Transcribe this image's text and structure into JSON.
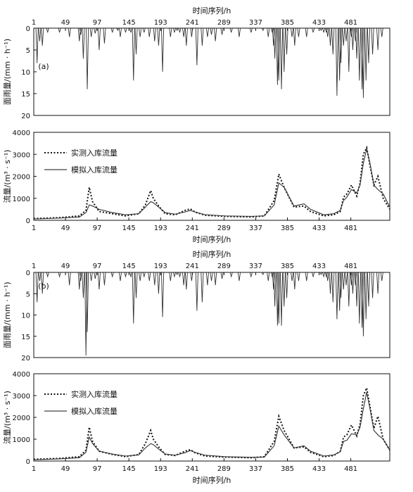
{
  "figure": {
    "colors": {
      "axis": "#111111",
      "rain": "#333333",
      "observed": "#111111",
      "simulated": "#333333"
    }
  },
  "chart_data": [
    {
      "type": "bar",
      "panel_label": "(a)",
      "xlabel": "时间序列/h",
      "ylabel": "面雨量/(mm · h⁻¹)",
      "xlim": [
        1,
        540
      ],
      "ylim": [
        0,
        20
      ],
      "y_inverted": true,
      "x_axis_position": "top",
      "xticks": [
        1,
        49,
        97,
        145,
        193,
        241,
        289,
        337,
        385,
        433,
        481
      ],
      "yticks": [
        0,
        5,
        10,
        15,
        20
      ],
      "x": [
        6,
        10,
        14,
        22,
        40,
        55,
        70,
        72,
        76,
        82,
        88,
        94,
        100,
        108,
        120,
        128,
        132,
        140,
        148,
        152,
        156,
        162,
        168,
        176,
        184,
        190,
        196,
        208,
        214,
        218,
        222,
        228,
        232,
        240,
        248,
        256,
        264,
        270,
        276,
        286,
        300,
        312,
        330,
        348,
        356,
        362,
        364,
        366,
        370,
        372,
        376,
        380,
        384,
        392,
        396,
        402,
        414,
        424,
        436,
        440,
        444,
        446,
        450,
        454,
        460,
        464,
        466,
        470,
        474,
        478,
        482,
        484,
        488,
        490,
        494,
        498,
        500,
        504,
        508,
        514,
        522,
        528
      ],
      "values": [
        8,
        3,
        4,
        1,
        1,
        2,
        3,
        1.5,
        7,
        14,
        2,
        1.2,
        5,
        3.5,
        1,
        0.5,
        2,
        1,
        1,
        12,
        6,
        2,
        1,
        2,
        3,
        4,
        10,
        2,
        1,
        0.5,
        1,
        2,
        4,
        2,
        8.5,
        4,
        2,
        1.5,
        3,
        1.5,
        1,
        2,
        1,
        0.5,
        2,
        1,
        4,
        7,
        13,
        12,
        14,
        10,
        6,
        2,
        4,
        2,
        2,
        1,
        0.5,
        1,
        1,
        2,
        4,
        6,
        15.5,
        12,
        8,
        4,
        3,
        10,
        2,
        5,
        3,
        7,
        12,
        14,
        16,
        12,
        8,
        6,
        5,
        2
      ]
    },
    {
      "type": "line",
      "xlabel": "时间序列/h",
      "ylabel": "流量/(m³ · s⁻¹)",
      "xlim": [
        1,
        540
      ],
      "ylim": [
        0,
        4000
      ],
      "xticks": [
        1,
        49,
        97,
        145,
        193,
        241,
        289,
        337,
        385,
        433,
        481
      ],
      "yticks": [
        0,
        1000,
        2000,
        3000,
        4000
      ],
      "legend_position": "upper-left",
      "series": [
        {
          "name": "实测入库流量",
          "style": "dotted",
          "x": [
            1,
            40,
            70,
            80,
            85,
            90,
            100,
            120,
            140,
            160,
            170,
            178,
            182,
            190,
            200,
            215,
            230,
            238,
            245,
            260,
            290,
            330,
            350,
            365,
            372,
            380,
            395,
            410,
            420,
            440,
            455,
            465,
            470,
            475,
            482,
            490,
            495,
            500,
            505,
            510,
            516,
            522,
            530,
            540
          ],
          "values": [
            80,
            120,
            200,
            450,
            1500,
            850,
            400,
            300,
            200,
            300,
            700,
            1350,
            1000,
            650,
            300,
            250,
            450,
            520,
            380,
            230,
            180,
            150,
            200,
            900,
            2100,
            1500,
            600,
            650,
            400,
            200,
            250,
            400,
            1050,
            1200,
            1600,
            1100,
            1700,
            3000,
            3300,
            2500,
            1600,
            2000,
            1000,
            500
          ]
        },
        {
          "name": "模拟入库流量",
          "style": "solid",
          "x": [
            1,
            40,
            70,
            80,
            85,
            90,
            100,
            120,
            140,
            160,
            170,
            178,
            182,
            190,
            200,
            215,
            230,
            238,
            245,
            260,
            290,
            330,
            350,
            365,
            372,
            380,
            395,
            410,
            420,
            440,
            455,
            465,
            470,
            475,
            482,
            490,
            495,
            500,
            505,
            510,
            516,
            522,
            530,
            540
          ],
          "values": [
            60,
            100,
            150,
            350,
            700,
            650,
            500,
            350,
            250,
            300,
            600,
            850,
            800,
            600,
            350,
            280,
            380,
            450,
            380,
            260,
            200,
            180,
            200,
            700,
            1700,
            1500,
            650,
            750,
            500,
            250,
            300,
            450,
            900,
            1050,
            1400,
            1250,
            1600,
            2600,
            3250,
            2600,
            1600,
            1400,
            1200,
            600
          ]
        }
      ]
    },
    {
      "type": "bar",
      "panel_label": "(b)",
      "xlabel": "时间序列/h",
      "ylabel": "面雨量/(mm · h⁻¹)",
      "xlim": [
        1,
        540
      ],
      "ylim": [
        0,
        20
      ],
      "y_inverted": true,
      "x_axis_position": "top",
      "xticks": [
        1,
        49,
        97,
        145,
        193,
        241,
        289,
        337,
        385,
        433,
        481
      ],
      "yticks": [
        0,
        5,
        10,
        15,
        20
      ],
      "x": [
        6,
        10,
        14,
        22,
        40,
        55,
        70,
        72,
        76,
        80,
        82,
        88,
        94,
        100,
        108,
        120,
        132,
        140,
        148,
        152,
        156,
        162,
        168,
        176,
        184,
        190,
        196,
        208,
        214,
        218,
        222,
        228,
        232,
        240,
        248,
        256,
        264,
        270,
        276,
        286,
        300,
        312,
        330,
        348,
        356,
        362,
        364,
        366,
        370,
        372,
        376,
        380,
        384,
        392,
        396,
        402,
        414,
        424,
        436,
        440,
        444,
        446,
        450,
        454,
        460,
        464,
        466,
        470,
        474,
        478,
        482,
        484,
        488,
        490,
        494,
        498,
        500,
        504,
        508,
        514,
        522,
        528
      ],
      "values": [
        7,
        2,
        5,
        1,
        1,
        3,
        4,
        2,
        6,
        19.5,
        14,
        2,
        1.5,
        4,
        3,
        1,
        2,
        1,
        1,
        12,
        6,
        2,
        1,
        2,
        3,
        5,
        10.5,
        2,
        1,
        0.5,
        1,
        3,
        4,
        2,
        9,
        7,
        3,
        2,
        3,
        1.5,
        1,
        2,
        1,
        0.5,
        2,
        1,
        4,
        8,
        12.5,
        12,
        12.5,
        8,
        6,
        2,
        4,
        2,
        2,
        1,
        0.5,
        1,
        1,
        2,
        5,
        7,
        11,
        9,
        6,
        4,
        3,
        8,
        3,
        5,
        3,
        8,
        12,
        13,
        15,
        11,
        8,
        6,
        5,
        2
      ]
    },
    {
      "type": "line",
      "xlabel": "时间序列/h",
      "ylabel": "流量/(m³ · s⁻¹)",
      "xlim": [
        1,
        540
      ],
      "ylim": [
        0,
        4000
      ],
      "xticks": [
        1,
        49,
        97,
        145,
        193,
        241,
        289,
        337,
        385,
        433,
        481
      ],
      "yticks": [
        0,
        1000,
        2000,
        3000,
        4000
      ],
      "legend_position": "upper-left",
      "series": [
        {
          "name": "实测入库流量",
          "style": "dotted",
          "x": [
            1,
            40,
            70,
            80,
            85,
            90,
            100,
            120,
            140,
            160,
            170,
            178,
            182,
            190,
            200,
            215,
            230,
            238,
            245,
            260,
            290,
            330,
            350,
            365,
            372,
            380,
            395,
            410,
            420,
            440,
            455,
            465,
            470,
            475,
            482,
            490,
            495,
            500,
            505,
            510,
            516,
            522,
            530,
            540
          ],
          "values": [
            80,
            120,
            200,
            500,
            1550,
            900,
            450,
            300,
            200,
            300,
            800,
            1400,
            1000,
            650,
            300,
            250,
            450,
            520,
            380,
            230,
            180,
            150,
            200,
            900,
            2050,
            1400,
            600,
            650,
            400,
            200,
            250,
            450,
            1100,
            1200,
            1650,
            1150,
            1700,
            3000,
            3350,
            2500,
            1500,
            2050,
            1000,
            500
          ]
        },
        {
          "name": "模拟入库流量",
          "style": "solid",
          "x": [
            1,
            40,
            70,
            80,
            85,
            90,
            100,
            120,
            140,
            160,
            170,
            178,
            182,
            190,
            200,
            215,
            230,
            238,
            245,
            260,
            290,
            330,
            350,
            365,
            372,
            380,
            395,
            410,
            420,
            440,
            455,
            465,
            470,
            475,
            482,
            490,
            495,
            500,
            505,
            510,
            516,
            522,
            530,
            540
          ],
          "values": [
            60,
            100,
            150,
            400,
            1100,
            800,
            450,
            320,
            230,
            280,
            600,
            800,
            750,
            550,
            320,
            270,
            380,
            480,
            400,
            270,
            200,
            170,
            180,
            700,
            1600,
            1200,
            600,
            700,
            450,
            230,
            280,
            420,
            900,
            950,
            1250,
            1200,
            1550,
            2400,
            3150,
            2400,
            1400,
            1200,
            1000,
            500
          ]
        }
      ]
    }
  ]
}
